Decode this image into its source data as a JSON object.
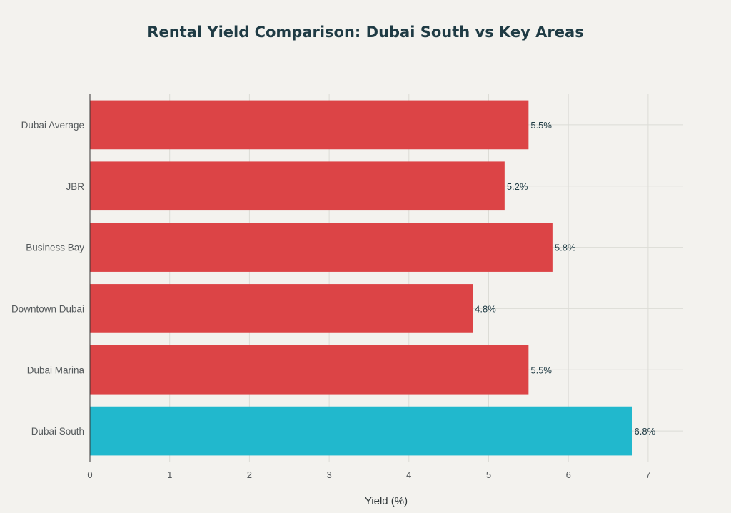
{
  "chart_data": {
    "type": "bar",
    "orientation": "horizontal",
    "title": "Rental Yield Comparison: Dubai South vs Key Areas",
    "xlabel": "Yield (%)",
    "ylabel": "",
    "xlim": [
      0,
      7.15
    ],
    "xticks": [
      "0",
      "1",
      "2",
      "3",
      "4",
      "5",
      "6",
      "7"
    ],
    "categories": [
      "Dubai South",
      "Dubai Marina",
      "Downtown Dubai",
      "Business Bay",
      "JBR",
      "Dubai Average"
    ],
    "values": [
      6.8,
      5.5,
      4.8,
      5.8,
      5.2,
      5.5
    ],
    "data_labels": [
      "6.8%",
      "5.5%",
      "4.8%",
      "5.8%",
      "5.2%",
      "5.5%"
    ],
    "highlight_category": "Dubai South",
    "grid": true,
    "legend": "none",
    "colors": {
      "default": "#dc4446",
      "highlight": "#21b8cd"
    }
  }
}
